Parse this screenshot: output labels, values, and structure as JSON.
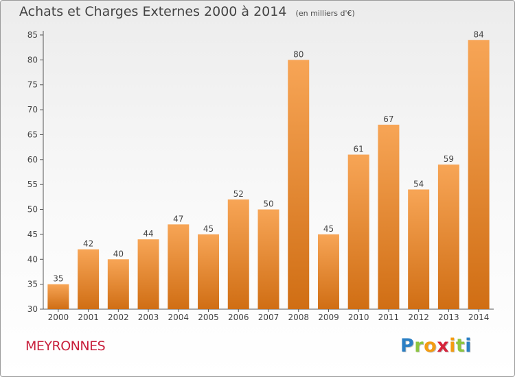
{
  "header": {
    "title": "Achats et Charges Externes 2000 à 2014",
    "unit": "(en milliers d'€)"
  },
  "footer": {
    "commune": "MEYRONNES",
    "logo_letters": [
      "P",
      "r",
      "o",
      "x",
      "i",
      "t",
      "i"
    ],
    "logo_colors": [
      "#2b7fc4",
      "#8cc63f",
      "#f39c12",
      "#d6243a",
      "#f39c12",
      "#8cc63f",
      "#2b7fc4"
    ]
  },
  "chart_data": {
    "type": "bar",
    "title": "Achats et Charges Externes 2000 à 2014",
    "subtitle": "(en milliers d'€)",
    "categories": [
      "2000",
      "2001",
      "2002",
      "2003",
      "2004",
      "2005",
      "2006",
      "2007",
      "2008",
      "2009",
      "2010",
      "2011",
      "2012",
      "2013",
      "2014"
    ],
    "values": [
      35,
      42,
      40,
      44,
      47,
      45,
      52,
      50,
      80,
      45,
      61,
      67,
      54,
      59,
      84
    ],
    "ylim": [
      30,
      85
    ],
    "yticks": [
      30,
      35,
      40,
      45,
      50,
      55,
      60,
      65,
      70,
      75,
      80,
      85
    ],
    "grid": false,
    "legend": "none",
    "colors": {
      "bar_light": "#f7a556",
      "bar_dark": "#d06e14",
      "axis": "#555555",
      "text": "#444444"
    }
  }
}
